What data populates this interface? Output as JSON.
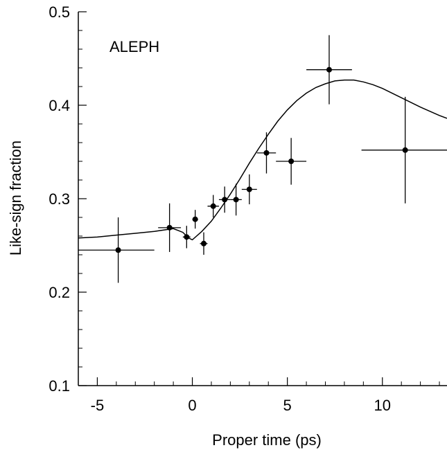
{
  "chart_data": {
    "type": "scatter",
    "title": "",
    "annotation": "ALEPH",
    "xlabel": "Proper time  (ps)",
    "ylabel": "Like-sign fraction",
    "xlim": [
      -6.0,
      13.4
    ],
    "ylim": [
      0.1,
      0.5
    ],
    "x_ticks": [
      -5,
      0,
      5,
      10
    ],
    "x_tick_labels": [
      "-5",
      "0",
      "5",
      "10"
    ],
    "y_ticks": [
      0.1,
      0.2,
      0.3,
      0.4,
      0.5
    ],
    "y_tick_labels": [
      "0.1",
      "0.2",
      "0.3",
      "0.4",
      "0.5"
    ],
    "grid": false,
    "points": [
      {
        "x": -3.9,
        "y": 0.245,
        "x_err_lo": 2.1,
        "x_err_hi": 1.9,
        "y_err": 0.035
      },
      {
        "x": -1.2,
        "y": 0.269,
        "x_err_lo": 0.6,
        "x_err_hi": 0.6,
        "y_err": 0.026
      },
      {
        "x": -0.3,
        "y": 0.259,
        "x_err_lo": 0.2,
        "x_err_hi": 0.2,
        "y_err": 0.012
      },
      {
        "x": 0.15,
        "y": 0.278,
        "x_err_lo": 0.15,
        "x_err_hi": 0.15,
        "y_err": 0.01
      },
      {
        "x": 0.6,
        "y": 0.252,
        "x_err_lo": 0.2,
        "x_err_hi": 0.2,
        "y_err": 0.012
      },
      {
        "x": 1.1,
        "y": 0.292,
        "x_err_lo": 0.3,
        "x_err_hi": 0.3,
        "y_err": 0.012
      },
      {
        "x": 1.7,
        "y": 0.299,
        "x_err_lo": 0.3,
        "x_err_hi": 0.3,
        "y_err": 0.014
      },
      {
        "x": 2.3,
        "y": 0.299,
        "x_err_lo": 0.3,
        "x_err_hi": 0.3,
        "y_err": 0.017
      },
      {
        "x": 3.0,
        "y": 0.31,
        "x_err_lo": 0.4,
        "x_err_hi": 0.4,
        "y_err": 0.016
      },
      {
        "x": 3.9,
        "y": 0.349,
        "x_err_lo": 0.5,
        "x_err_hi": 0.5,
        "y_err": 0.022
      },
      {
        "x": 5.2,
        "y": 0.34,
        "x_err_lo": 0.8,
        "x_err_hi": 0.8,
        "y_err": 0.025
      },
      {
        "x": 7.2,
        "y": 0.438,
        "x_err_lo": 1.2,
        "x_err_hi": 1.2,
        "y_err": 0.037
      },
      {
        "x": 11.2,
        "y": 0.352,
        "x_err_lo": 2.3,
        "x_err_hi": 2.3,
        "y_err": 0.057
      }
    ],
    "fit_curve": {
      "x": [
        -6.0,
        -5.0,
        -4.0,
        -3.0,
        -2.0,
        -1.0,
        -0.5,
        -0.2,
        0.0,
        0.5,
        1.0,
        1.5,
        2.0,
        2.5,
        3.0,
        3.5,
        4.0,
        4.5,
        5.0,
        5.5,
        6.0,
        6.5,
        7.0,
        7.5,
        8.0,
        8.5,
        9.0,
        9.5,
        10.0,
        11.0,
        12.0,
        13.0,
        13.4
      ],
      "y": [
        0.258,
        0.259,
        0.261,
        0.263,
        0.265,
        0.268,
        0.264,
        0.258,
        0.256,
        0.265,
        0.276,
        0.29,
        0.305,
        0.321,
        0.338,
        0.354,
        0.369,
        0.383,
        0.395,
        0.405,
        0.413,
        0.419,
        0.423,
        0.426,
        0.427,
        0.427,
        0.425,
        0.422,
        0.418,
        0.408,
        0.398,
        0.389,
        0.386
      ]
    }
  }
}
